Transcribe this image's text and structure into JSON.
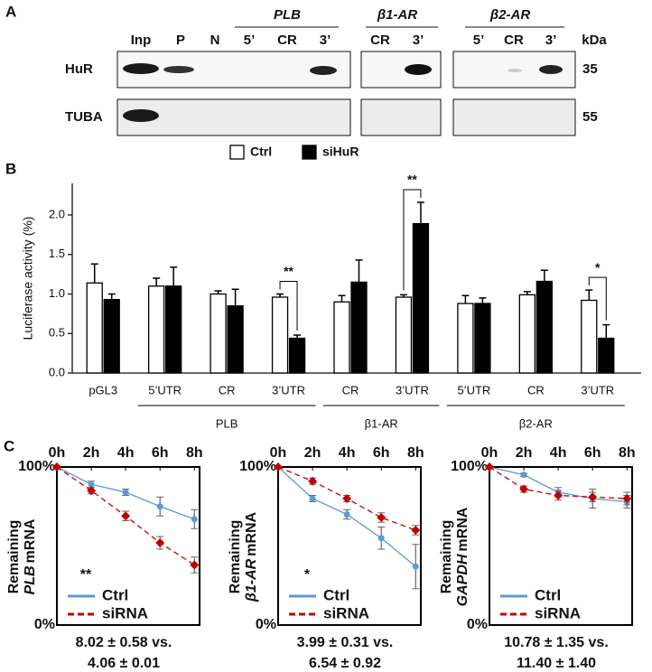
{
  "panel_labels": [
    "A",
    "B",
    "C"
  ],
  "blot": {
    "groups": [
      "PLB",
      "β1-AR",
      "β2-AR"
    ],
    "lanes": [
      "Inp",
      "P",
      "N",
      "5’",
      "CR",
      "3’",
      "CR",
      "3’",
      "5’",
      "CR",
      "3’"
    ],
    "kda_label": "kDa",
    "rows": [
      "HuR",
      "TUBA"
    ],
    "kda": [
      "35",
      "55"
    ]
  },
  "chart_data": [
    {
      "type": "bar",
      "ylabel": "Luciferase activity (%)",
      "categories": [
        "pGL3",
        "5’UTR",
        "CR",
        "3’UTR",
        "CR",
        "3’UTR",
        "5’UTR",
        "CR",
        "3’UTR"
      ],
      "groups": [
        null,
        "PLB",
        "PLB",
        "PLB",
        "β1-AR",
        "β1-AR",
        "β2-AR",
        "β2-AR",
        "β2-AR"
      ],
      "significance": [
        null,
        null,
        null,
        "**",
        null,
        "**",
        null,
        null,
        "*"
      ],
      "series": [
        {
          "name": "Ctrl",
          "color": "#ffffff",
          "values": [
            1.14,
            1.1,
            1.0,
            0.96,
            0.9,
            0.96,
            0.88,
            0.99,
            0.92
          ],
          "errors": [
            0.24,
            0.1,
            0.04,
            0.04,
            0.08,
            0.03,
            0.1,
            0.04,
            0.13
          ]
        },
        {
          "name": "siHuR",
          "color": "#000000",
          "values": [
            0.93,
            1.1,
            0.85,
            0.44,
            1.15,
            1.89,
            0.88,
            1.16,
            0.44
          ],
          "errors": [
            0.07,
            0.24,
            0.21,
            0.04,
            0.28,
            0.27,
            0.07,
            0.14,
            0.17
          ]
        }
      ],
      "ylim": [
        0,
        2.4
      ],
      "yticks": [
        {
          "value": 0,
          "label": "0.0"
        },
        0.5,
        {
          "value": 1,
          "label": "1.0"
        },
        1.5,
        {
          "value": 2,
          "label": "2.0"
        }
      ]
    },
    {
      "type": "line",
      "ylabel": [
        "Remaining",
        "PLB",
        "mRNA"
      ],
      "x": [
        0,
        2,
        4,
        6,
        8
      ],
      "xlim": [
        0,
        8.3
      ],
      "xticks": [
        {
          "value": 0,
          "label": "0h"
        },
        {
          "value": 2,
          "label": "2h"
        },
        {
          "value": 4,
          "label": "4h"
        },
        {
          "value": 6,
          "label": "6h"
        },
        {
          "value": 8,
          "label": "8h"
        }
      ],
      "ylim": [
        0,
        100
      ],
      "yticks": [
        {
          "value": 0,
          "label": "0%"
        },
        {
          "value": 100,
          "label": "100%"
        }
      ],
      "series": [
        {
          "name": "Ctrl",
          "color": "#5b9bd5",
          "values": [
            100,
            89,
            84,
            75,
            67
          ],
          "errors": [
            null,
            2,
            2,
            6,
            6
          ]
        },
        {
          "name": "siRNA",
          "color": "#c00000",
          "dashed": true,
          "values": [
            100,
            85,
            69,
            52,
            38
          ],
          "errors": [
            null,
            2,
            3,
            4,
            5
          ]
        }
      ],
      "annotation": "**",
      "half_life": [
        "8.02 ± 0.58 vs.",
        "4.06 ± 0.01"
      ]
    },
    {
      "type": "line",
      "ylabel": [
        "Remaining",
        "β1-AR",
        "mRNA"
      ],
      "x": [
        0,
        2,
        4,
        6,
        8
      ],
      "xlim": [
        0,
        8.3
      ],
      "xticks": [
        {
          "value": 0,
          "label": "0h"
        },
        {
          "value": 2,
          "label": "2h"
        },
        {
          "value": 4,
          "label": "4h"
        },
        {
          "value": 6,
          "label": "6h"
        },
        {
          "value": 8,
          "label": "8h"
        }
      ],
      "ylim": [
        0,
        100
      ],
      "yticks": [
        {
          "value": 0,
          "label": "0%"
        },
        {
          "value": 100,
          "label": "100%"
        }
      ],
      "series": [
        {
          "name": "Ctrl",
          "color": "#5b9bd5",
          "values": [
            100,
            80,
            70,
            55,
            37
          ],
          "errors": [
            null,
            2,
            3,
            7,
            14
          ]
        },
        {
          "name": "siRNA",
          "color": "#c00000",
          "dashed": true,
          "values": [
            100,
            91,
            80,
            68,
            60
          ],
          "errors": [
            null,
            2,
            2,
            3,
            3
          ]
        }
      ],
      "annotation": "*",
      "half_life": [
        "3.99 ± 0.31 vs.",
        "6.54 ± 0.92"
      ]
    },
    {
      "type": "line",
      "ylabel": [
        "Remaining",
        "GAPDH",
        "mRNA"
      ],
      "x": [
        0,
        2,
        4,
        6,
        8
      ],
      "xlim": [
        0,
        8.3
      ],
      "xticks": [
        {
          "value": 0,
          "label": "0h"
        },
        {
          "value": 2,
          "label": "2h"
        },
        {
          "value": 4,
          "label": "4h"
        },
        {
          "value": 6,
          "label": "6h"
        },
        {
          "value": 8,
          "label": "8h"
        }
      ],
      "ylim": [
        0,
        100
      ],
      "yticks": [
        {
          "value": 0,
          "label": "0%"
        },
        {
          "value": 100,
          "label": "100%"
        }
      ],
      "series": [
        {
          "name": "Ctrl",
          "color": "#5b9bd5",
          "values": [
            100,
            95,
            84,
            80,
            78
          ],
          "errors": [
            null,
            1,
            3,
            6,
            4
          ]
        },
        {
          "name": "siRNA",
          "color": "#c00000",
          "dashed": true,
          "values": [
            100,
            86,
            82,
            81,
            80
          ],
          "errors": [
            null,
            2,
            3,
            3,
            4
          ]
        }
      ],
      "half_life": [
        "10.78 ± 1.35 vs.",
        "11.40 ± 1.40"
      ]
    }
  ]
}
